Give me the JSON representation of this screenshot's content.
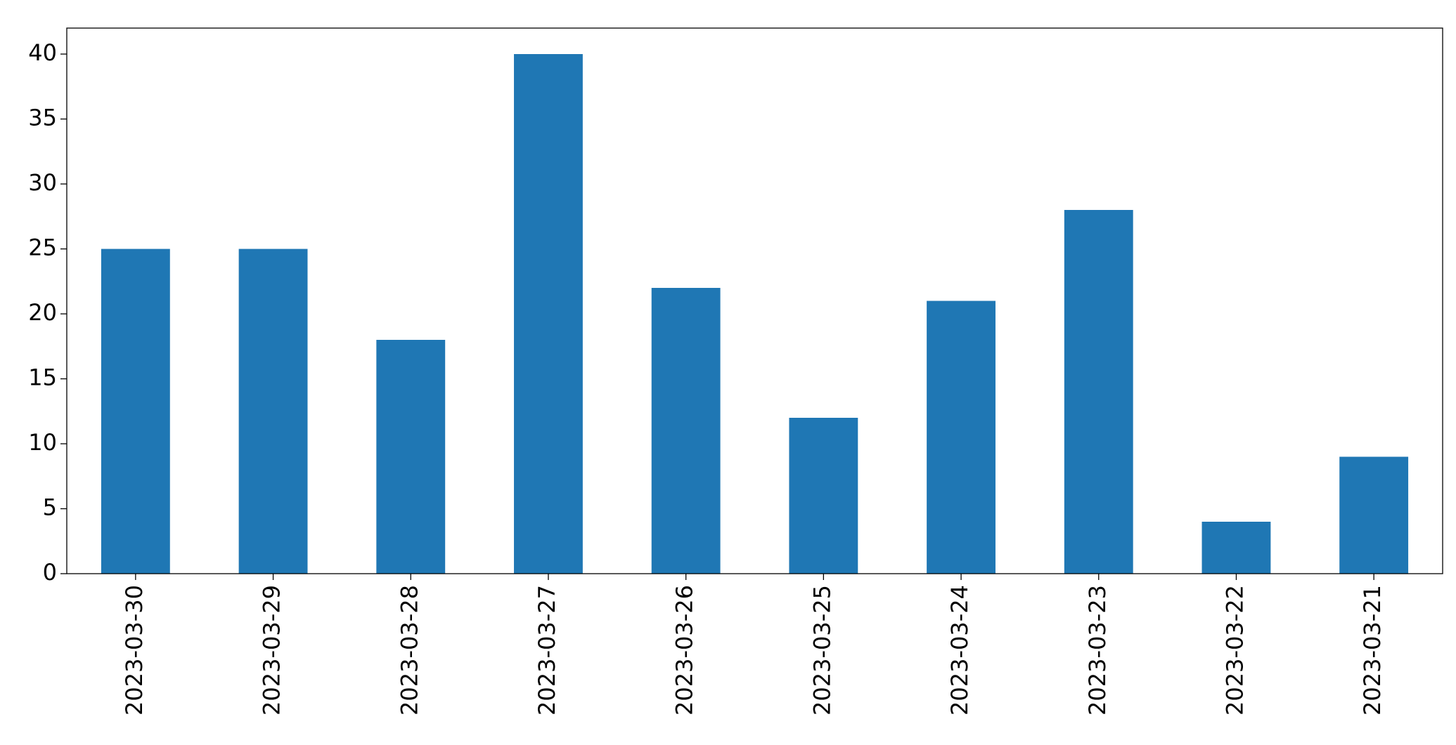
{
  "chart_data": {
    "type": "bar",
    "categories": [
      "2023-03-30",
      "2023-03-29",
      "2023-03-28",
      "2023-03-27",
      "2023-03-26",
      "2023-03-25",
      "2023-03-24",
      "2023-03-23",
      "2023-03-22",
      "2023-03-21"
    ],
    "values": [
      25,
      25,
      18,
      40,
      22,
      12,
      21,
      28,
      4,
      9
    ],
    "color": "#1f77b4",
    "ylim": [
      0,
      42
    ],
    "yticks": [
      0,
      5,
      10,
      15,
      20,
      25,
      30,
      35,
      40
    ],
    "grid": false
  }
}
